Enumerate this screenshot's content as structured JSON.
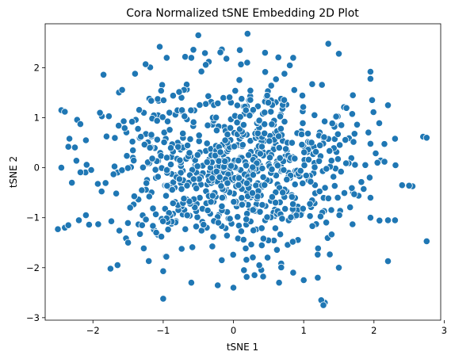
{
  "chart_data": {
    "type": "scatter",
    "title": "Cora Normalized tSNE Embedding 2D Plot",
    "xlabel": "tSNE 1",
    "ylabel": "tSNE 2",
    "xlim": [
      -2.68,
      2.95
    ],
    "ylim": [
      -3.05,
      2.88
    ],
    "xticks": [
      -2,
      -1,
      0,
      1,
      2,
      3
    ],
    "yticks": [
      -3,
      -2,
      -1,
      0,
      1,
      2
    ],
    "grid": false,
    "marker_color": "#1f77b4",
    "marker_edge": "#ffffff",
    "outlier_points": [
      {
        "x": -0.5,
        "y": 2.65
      },
      {
        "x": 0.2,
        "y": 2.68
      },
      {
        "x": 1.35,
        "y": 2.48
      },
      {
        "x": -1.05,
        "y": 2.42
      },
      {
        "x": -1.25,
        "y": 2.07
      },
      {
        "x": -0.95,
        "y": 2.2
      },
      {
        "x": -0.6,
        "y": 2.2
      },
      {
        "x": -0.1,
        "y": 2.18
      },
      {
        "x": 0.45,
        "y": 2.3
      },
      {
        "x": 0.85,
        "y": 2.2
      },
      {
        "x": 1.5,
        "y": 2.28
      },
      {
        "x": -1.4,
        "y": 1.88
      },
      {
        "x": -1.85,
        "y": 1.86
      },
      {
        "x": 1.95,
        "y": 1.92
      },
      {
        "x": 1.95,
        "y": 1.78
      },
      {
        "x": -2.45,
        "y": 1.15
      },
      {
        "x": -2.4,
        "y": 1.12
      },
      {
        "x": -1.9,
        "y": 1.1
      },
      {
        "x": -2.1,
        "y": 0.55
      },
      {
        "x": -2.35,
        "y": 0.42
      },
      {
        "x": 2.2,
        "y": 1.25
      },
      {
        "x": 2.7,
        "y": 0.62
      },
      {
        "x": 2.75,
        "y": 0.6
      },
      {
        "x": 2.3,
        "y": 0.58
      },
      {
        "x": 2.4,
        "y": -0.35
      },
      {
        "x": 2.55,
        "y": -0.37
      },
      {
        "x": 2.5,
        "y": -0.36
      },
      {
        "x": 2.2,
        "y": -1.05
      },
      {
        "x": 2.3,
        "y": -1.05
      },
      {
        "x": 2.75,
        "y": -1.47
      },
      {
        "x": 2.2,
        "y": -1.87
      },
      {
        "x": 1.5,
        "y": -2.0
      },
      {
        "x": 1.2,
        "y": -2.2
      },
      {
        "x": 1.3,
        "y": -2.7
      },
      {
        "x": 1.25,
        "y": -2.65
      },
      {
        "x": 1.28,
        "y": -2.75
      },
      {
        "x": -1.0,
        "y": -2.62
      },
      {
        "x": 0.0,
        "y": -2.4
      },
      {
        "x": -0.6,
        "y": -2.3
      },
      {
        "x": 0.3,
        "y": -2.15
      },
      {
        "x": 0.65,
        "y": -2.3
      },
      {
        "x": 0.85,
        "y": -2.1
      },
      {
        "x": -1.0,
        "y": -2.07
      },
      {
        "x": -1.65,
        "y": -1.95
      },
      {
        "x": -1.75,
        "y": -2.02
      },
      {
        "x": -2.5,
        "y": -1.23
      },
      {
        "x": -2.4,
        "y": -1.2
      },
      {
        "x": -2.35,
        "y": -1.15
      },
      {
        "x": -2.2,
        "y": -1.05
      },
      {
        "x": -2.1,
        "y": -0.95
      },
      {
        "x": -2.45,
        "y": 0.0
      },
      {
        "x": -2.3,
        "y": -0.3
      },
      {
        "x": -1.5,
        "y": -1.5
      },
      {
        "x": -1.3,
        "y": -1.15
      },
      {
        "x": 1.0,
        "y": -2.25
      },
      {
        "x": 0.15,
        "y": -2.05
      },
      {
        "x": 1.95,
        "y": -0.6
      },
      {
        "x": 1.95,
        "y": -1.0
      },
      {
        "x": 2.05,
        "y": 0.1
      },
      {
        "x": 2.15,
        "y": 0.12
      },
      {
        "x": 1.95,
        "y": 0.48
      },
      {
        "x": 1.7,
        "y": 1.45
      }
    ],
    "cluster": {
      "center_x": 0.0,
      "center_y": 0.0,
      "spread": 0.9,
      "count": 820,
      "seed": 20240607
    }
  }
}
